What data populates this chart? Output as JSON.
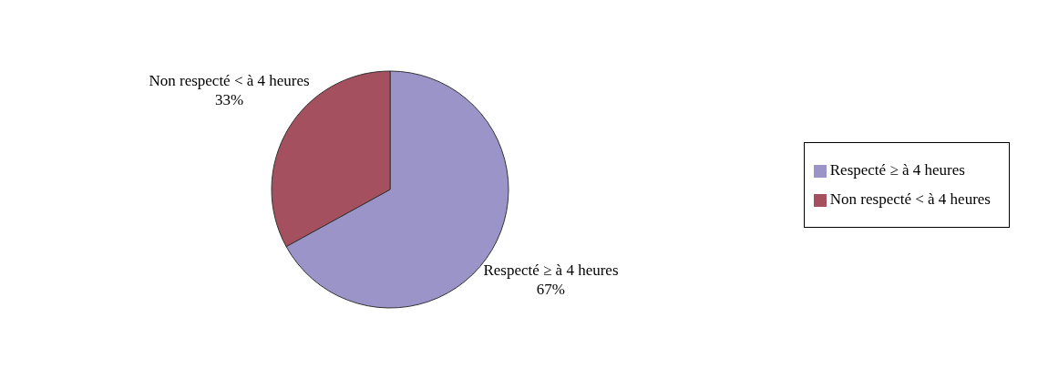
{
  "chart_data": {
    "type": "pie",
    "categories": [
      "Respecté ≥ à 4 heures",
      "Non respecté < à 4 heures"
    ],
    "values": [
      67,
      33
    ],
    "colors": [
      "#9a94c8",
      "#a5505e"
    ],
    "value_labels": [
      "67%",
      "33%"
    ],
    "legend": "right"
  }
}
